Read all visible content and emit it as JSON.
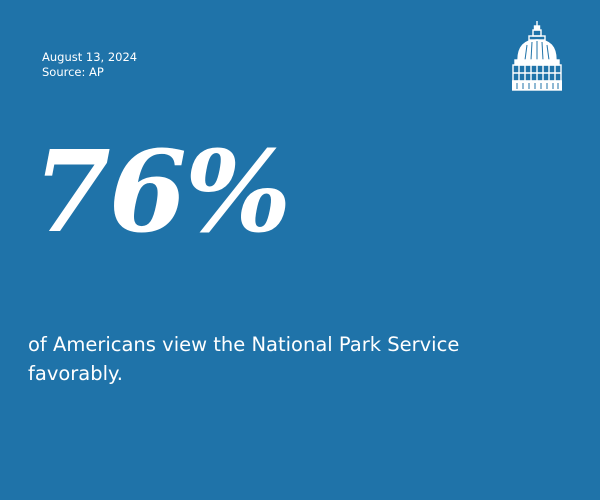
{
  "meta": {
    "date": "August 13, 2024",
    "source": "Source: AP"
  },
  "stat": {
    "value": "76%",
    "caption": "of Americans view the National Park Service favorably."
  },
  "logo": {
    "icon": "capitol-dome-icon"
  },
  "colors": {
    "background": "#1f73a9",
    "text": "#ffffff"
  }
}
